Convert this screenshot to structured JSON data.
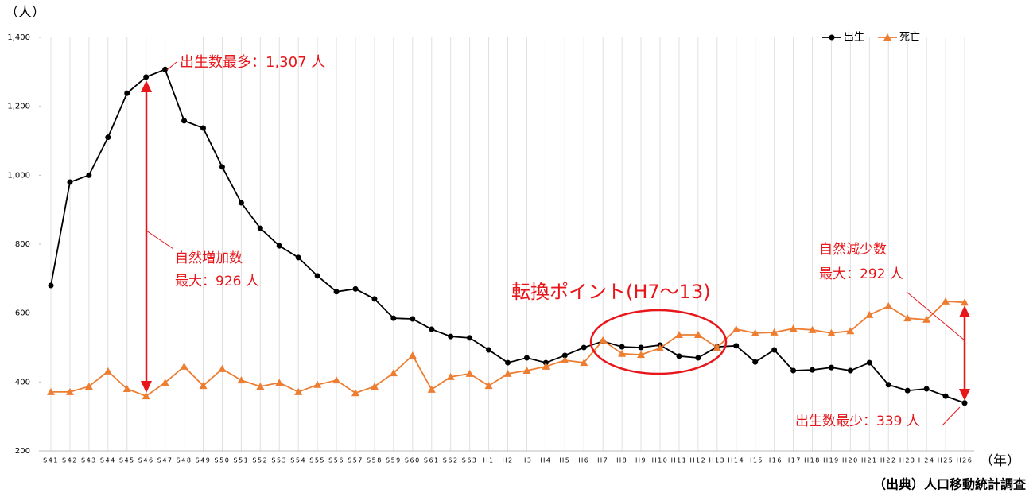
{
  "chart_data": {
    "type": "line",
    "y_label": "（人）",
    "x_label": "（年）",
    "source": "（出典）人口移動統計調査",
    "annotations": [
      "出生数最多：1,307 人",
      "自然増加数",
      "最大：926 人",
      "自然減少数",
      "最大：292 人",
      "転換ポイント(H7〜13)",
      "出生数最少：339 人"
    ],
    "categories": [
      "S41",
      "S42",
      "S43",
      "S44",
      "S45",
      "S46",
      "S47",
      "S48",
      "S49",
      "S50",
      "S51",
      "S52",
      "S53",
      "S54",
      "S55",
      "S56",
      "S57",
      "S58",
      "S59",
      "S60",
      "S61",
      "S62",
      "S63",
      "H1",
      "H2",
      "H3",
      "H4",
      "H5",
      "H6",
      "H7",
      "H8",
      "H9",
      "H10",
      "H11",
      "H12",
      "H13",
      "H14",
      "H15",
      "H16",
      "H17",
      "H18",
      "H19",
      "H20",
      "H21",
      "H22",
      "H23",
      "H24",
      "H25",
      "H26"
    ],
    "series": [
      {
        "name": "出生",
        "color": "#000000",
        "marker": "circle",
        "values": [
          680,
          980,
          1000,
          1110,
          1238,
          1285,
          1307,
          1158,
          1137,
          1024,
          920,
          846,
          795,
          761,
          708,
          662,
          670,
          641,
          585,
          583,
          553,
          532,
          528,
          493,
          456,
          470,
          456,
          477,
          500,
          518,
          502,
          500,
          507,
          475,
          470,
          502,
          505,
          458,
          493,
          433,
          435,
          442,
          433,
          456,
          392,
          375,
          380,
          359,
          339
        ]
      },
      {
        "name": "死亡",
        "color": "#ed7d31",
        "marker": "triangle",
        "values": [
          371,
          371,
          387,
          431,
          380,
          359,
          398,
          445,
          389,
          438,
          405,
          387,
          398,
          371,
          392,
          405,
          368,
          387,
          426,
          477,
          378,
          415,
          424,
          389,
          424,
          433,
          445,
          463,
          456,
          521,
          482,
          479,
          498,
          537,
          537,
          500,
          553,
          542,
          544,
          555,
          551,
          542,
          548,
          595,
          620,
          585,
          581,
          634,
          631
        ]
      }
    ],
    "ylim": [
      200,
      1400
    ],
    "yticks": [
      200,
      400,
      600,
      800,
      {
        "value": 1000,
        "label": "1,000"
      },
      {
        "value": 1200,
        "label": "1,200"
      },
      {
        "value": 1400,
        "label": "1,400"
      }
    ],
    "grid": "vertical",
    "legend": "top-right"
  }
}
